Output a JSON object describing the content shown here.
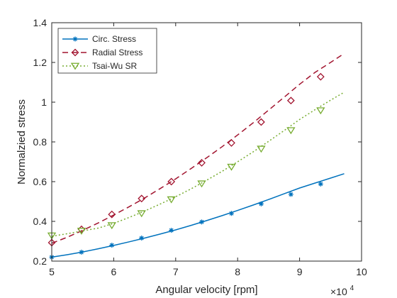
{
  "chart_data": {
    "type": "line",
    "xlabel": "Angular velocity [rpm]",
    "ylabel": "Normalzied stress",
    "x_exponent_base": "×10",
    "x_exponent_power": "4",
    "xlim": [
      5,
      10
    ],
    "ylim": [
      0.2,
      1.4
    ],
    "x_ticks": [
      5,
      6,
      7,
      8,
      9,
      10
    ],
    "y_ticks": [
      0.2,
      0.4,
      0.6,
      0.8,
      1,
      1.2,
      1.4
    ],
    "x_tick_labels": [
      "5",
      "6",
      "7",
      "8",
      "9",
      "10"
    ],
    "y_tick_labels": [
      "0.2",
      "0.4",
      "0.6",
      "0.8",
      "1",
      "1.2",
      "1.4"
    ],
    "grid": false,
    "legend_position": "top-left",
    "series": [
      {
        "name": "Circ. Stress",
        "color": "#0072BD",
        "line_style": "solid",
        "marker": "asterisk",
        "x": [
          5.0,
          5.25,
          5.5,
          5.75,
          6.0,
          6.25,
          6.5,
          6.75,
          7.0,
          7.25,
          7.5,
          7.75,
          8.0,
          8.25,
          8.5,
          8.75,
          9.0,
          9.25,
          9.5,
          9.72
        ],
        "y": [
          0.22,
          0.232,
          0.246,
          0.262,
          0.279,
          0.297,
          0.316,
          0.336,
          0.357,
          0.38,
          0.404,
          0.429,
          0.455,
          0.482,
          0.51,
          0.539,
          0.568,
          0.593,
          0.618,
          0.64
        ],
        "marker_x": [
          5.0,
          5.48,
          5.97,
          6.45,
          6.93,
          7.42,
          7.9,
          8.38,
          8.86,
          9.34
        ],
        "marker_y": [
          0.22,
          0.245,
          0.28,
          0.316,
          0.355,
          0.397,
          0.44,
          0.488,
          0.536,
          0.588
        ]
      },
      {
        "name": "Radial Stress",
        "color": "#A2142F",
        "line_style": "dashed",
        "marker": "diamond",
        "x": [
          5.0,
          5.25,
          5.5,
          5.75,
          6.0,
          6.25,
          6.5,
          6.75,
          7.0,
          7.25,
          7.5,
          7.75,
          8.0,
          8.25,
          8.5,
          8.75,
          9.0,
          9.25,
          9.5,
          9.72
        ],
        "y": [
          0.29,
          0.32,
          0.355,
          0.392,
          0.432,
          0.474,
          0.518,
          0.565,
          0.614,
          0.666,
          0.72,
          0.776,
          0.835,
          0.896,
          0.96,
          1.025,
          1.09,
          1.15,
          1.2,
          1.245
        ],
        "marker_x": [
          5.0,
          5.48,
          5.97,
          6.45,
          6.93,
          7.42,
          7.9,
          8.38,
          8.86,
          9.34
        ],
        "marker_y": [
          0.293,
          0.36,
          0.435,
          0.515,
          0.6,
          0.695,
          0.795,
          0.9,
          1.008,
          1.128
        ]
      },
      {
        "name": "Tsai-Wu SR",
        "color": "#77AC30",
        "line_style": "dotted",
        "marker": "triangle-down",
        "x": [
          5.0,
          5.25,
          5.5,
          5.75,
          6.0,
          6.25,
          6.5,
          6.75,
          7.0,
          7.25,
          7.5,
          7.75,
          8.0,
          8.25,
          8.5,
          8.75,
          9.0,
          9.25,
          9.5,
          9.72
        ],
        "y": [
          0.325,
          0.338,
          0.352,
          0.366,
          0.39,
          0.42,
          0.452,
          0.487,
          0.524,
          0.564,
          0.607,
          0.652,
          0.7,
          0.75,
          0.803,
          0.857,
          0.913,
          0.962,
          1.01,
          1.05
        ],
        "marker_x": [
          5.0,
          5.48,
          5.97,
          6.45,
          6.93,
          7.42,
          7.9,
          8.38,
          8.86,
          9.34
        ],
        "marker_y": [
          0.328,
          0.352,
          0.38,
          0.44,
          0.51,
          0.59,
          0.674,
          0.765,
          0.858,
          0.958
        ]
      }
    ]
  }
}
